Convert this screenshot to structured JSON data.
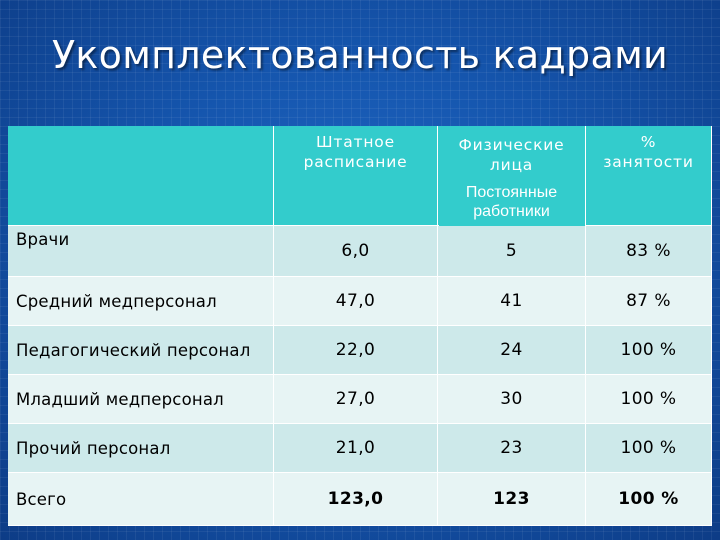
{
  "slide": {
    "title": "Укомплектованность кадрами"
  },
  "table": {
    "headers": {
      "staff_schedule": [
        "Штатное",
        "расписание"
      ],
      "physical_persons": [
        "Физические",
        "лица"
      ],
      "permanent_workers": [
        "Постоянные",
        "работники"
      ],
      "employment_percent": [
        "%",
        "занятости"
      ]
    },
    "rows": [
      {
        "label": "Врачи",
        "staff": "6,0",
        "persons": "5",
        "percent": "83 %"
      },
      {
        "label": "Средний медперсонал",
        "staff": "47,0",
        "persons": "41",
        "percent": "87 %"
      },
      {
        "label": "Педагогический персонал",
        "staff": "22,0",
        "persons": "24",
        "percent": "100 %"
      },
      {
        "label": "Младший медперсонал",
        "staff": "27,0",
        "persons": "30",
        "percent": "100 %"
      },
      {
        "label": "Прочий персонал",
        "staff": "21,0",
        "persons": "23",
        "percent": "100 %"
      },
      {
        "label": "Всего",
        "staff": "123,0",
        "persons": "123",
        "percent": "100 %"
      }
    ]
  },
  "colors": {
    "background": "#1555ad",
    "header": "#33cccc",
    "row_dark": "#cde9ea",
    "row_light": "#e7f4f4"
  }
}
